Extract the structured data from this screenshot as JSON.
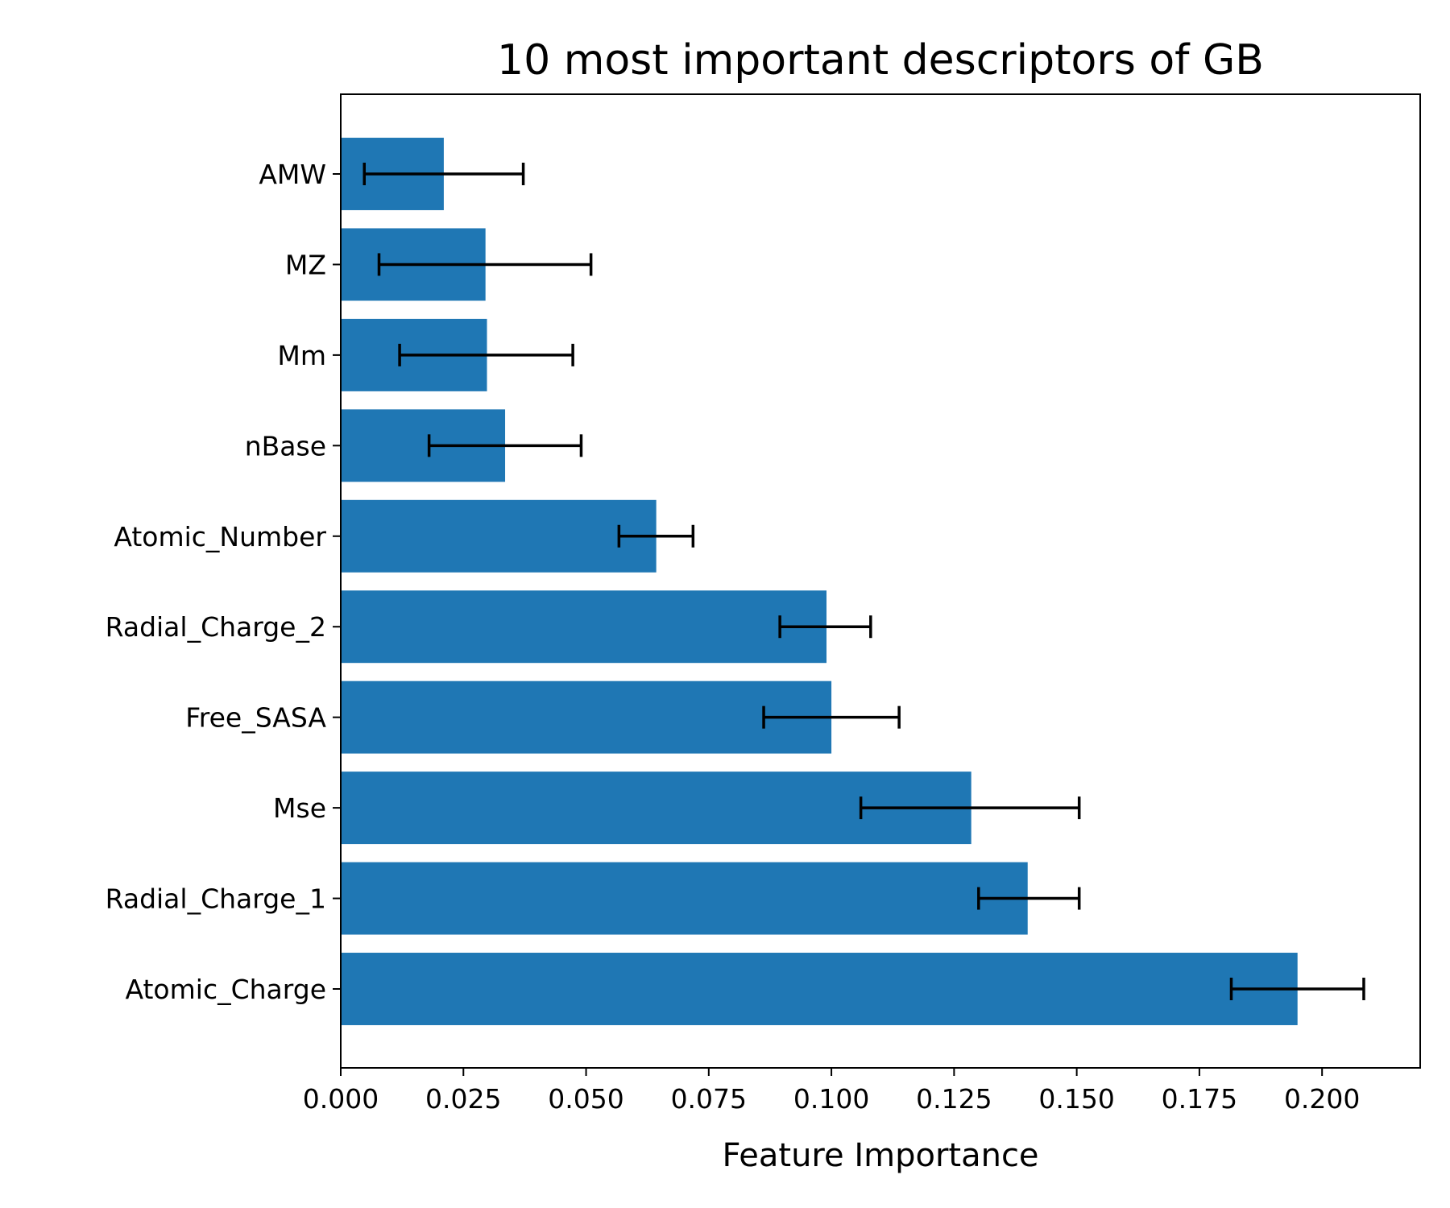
{
  "chart_data": {
    "type": "bar",
    "orientation": "horizontal",
    "title": "10 most important descriptors of GB",
    "xlabel": "Feature Importance",
    "ylabel": "",
    "xlim": [
      0,
      0.22
    ],
    "xticks": [
      0.0,
      0.025,
      0.05,
      0.075,
      0.1,
      0.125,
      0.15,
      0.175,
      0.2
    ],
    "xtick_labels": [
      "0.000",
      "0.025",
      "0.050",
      "0.075",
      "0.100",
      "0.125",
      "0.150",
      "0.175",
      "0.200"
    ],
    "categories": [
      "Atomic_Charge",
      "Radial_Charge_1",
      "Mse",
      "Free_SASA",
      "Radial_Charge_2",
      "Atomic_Number",
      "nBase",
      "Mm",
      "MZ",
      "AMW"
    ],
    "values": [
      0.195,
      0.14,
      0.1285,
      0.1,
      0.099,
      0.0643,
      0.0335,
      0.0298,
      0.0295,
      0.021
    ],
    "error_low": [
      0.1815,
      0.13,
      0.106,
      0.0862,
      0.0895,
      0.0567,
      0.018,
      0.012,
      0.0078,
      0.0048
    ],
    "error_high": [
      0.2085,
      0.1505,
      0.1505,
      0.1138,
      0.108,
      0.0718,
      0.049,
      0.0473,
      0.051,
      0.0372
    ],
    "bar_color": "#1f77b4",
    "error_color": "#000000",
    "grid": false
  }
}
